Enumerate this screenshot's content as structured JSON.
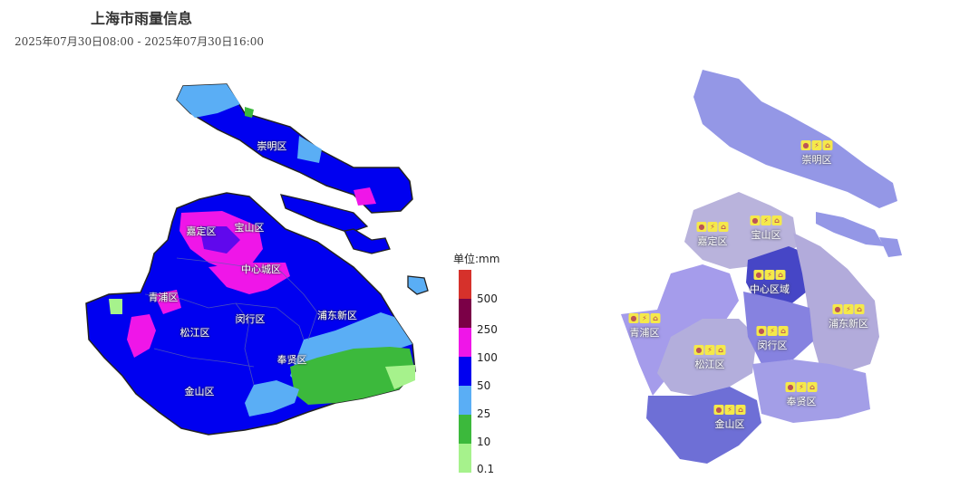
{
  "title": "上海市雨量信息",
  "subtitle": "2025年07月30日08:00 - 2025年07月30日16:00",
  "rainfall_map": {
    "districts": [
      {
        "name": "崇明区"
      },
      {
        "name": "嘉定区"
      },
      {
        "name": "宝山区"
      },
      {
        "name": "中心城区"
      },
      {
        "name": "青浦区"
      },
      {
        "name": "松江区"
      },
      {
        "name": "闵行区"
      },
      {
        "name": "浦东新区"
      },
      {
        "name": "奉贤区"
      },
      {
        "name": "金山区"
      }
    ],
    "colors": {
      "very_light_green": "#a6f28c",
      "green": "#3cb93c",
      "light_blue": "#5aaef5",
      "blue": "#0000f0",
      "magenta": "#ef16e8",
      "dark_magenta": "#7b0047",
      "red": "#d6312b"
    }
  },
  "legend": {
    "title": "单位:mm",
    "ticks": [
      "500",
      "250",
      "100",
      "50",
      "25",
      "10",
      "0.1"
    ]
  },
  "warning_map": {
    "districts": [
      {
        "name": "崇明区"
      },
      {
        "name": "嘉定区"
      },
      {
        "name": "宝山区"
      },
      {
        "name": "中心区域"
      },
      {
        "name": "青浦区"
      },
      {
        "name": "松江区"
      },
      {
        "name": "闵行区"
      },
      {
        "name": "浦东新区"
      },
      {
        "name": "奉贤区"
      },
      {
        "name": "金山区"
      }
    ],
    "icons": [
      "rain-warning-icon",
      "thunder-warning-icon",
      "heat-warning-icon"
    ]
  }
}
